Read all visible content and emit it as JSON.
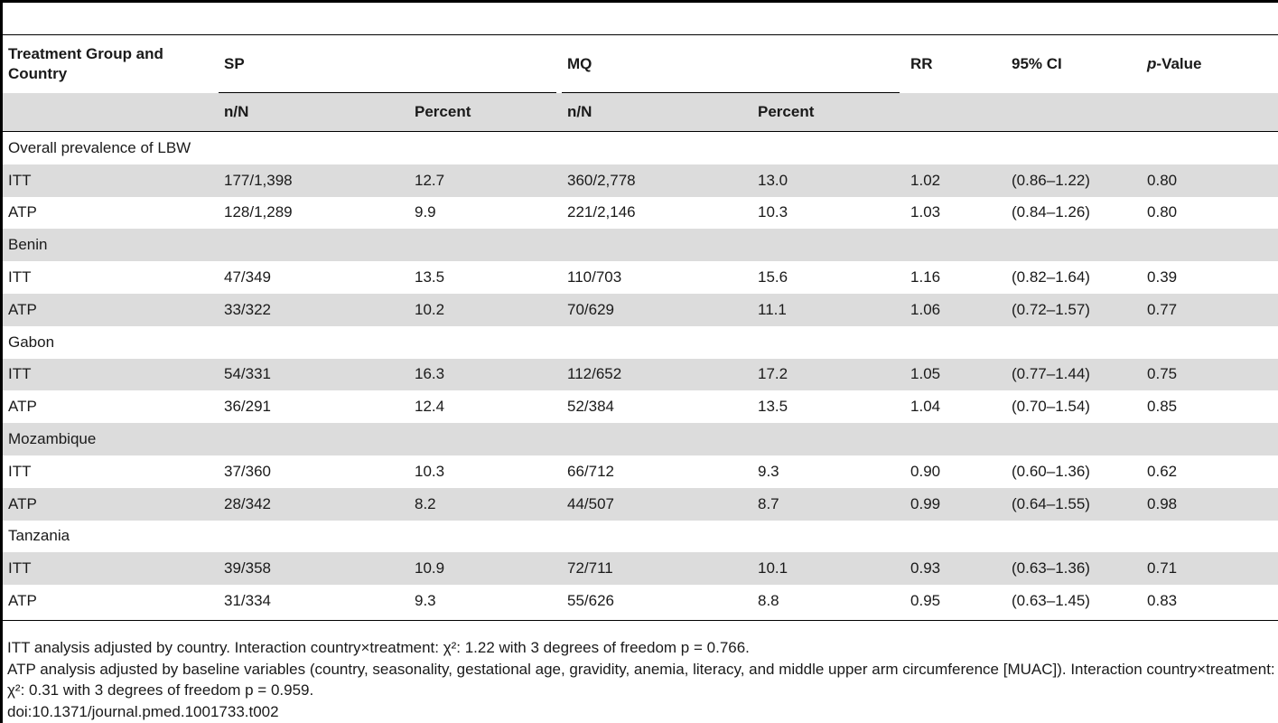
{
  "table": {
    "headers": {
      "group": "Treatment Group and Country",
      "sp": "SP",
      "mq": "MQ",
      "rr": "RR",
      "ci": "95% CI",
      "p_italic": "p",
      "p_rest": "-Value",
      "sp_nN": "n/N",
      "sp_pct": "Percent",
      "mq_nN": "n/N",
      "mq_pct": "Percent"
    },
    "sections": [
      {
        "label": "Overall prevalence of LBW",
        "rows": [
          {
            "label": "ITT",
            "sp_nN": "177/1,398",
            "sp_pct": "12.7",
            "mq_nN": "360/2,778",
            "mq_pct": "13.0",
            "rr": "1.02",
            "ci": "(0.86–1.22)",
            "p": "0.80"
          },
          {
            "label": "ATP",
            "sp_nN": "128/1,289",
            "sp_pct": "9.9",
            "mq_nN": "221/2,146",
            "mq_pct": "10.3",
            "rr": "1.03",
            "ci": "(0.84–1.26)",
            "p": "0.80"
          }
        ]
      },
      {
        "label": "Benin",
        "rows": [
          {
            "label": "ITT",
            "sp_nN": "47/349",
            "sp_pct": "13.5",
            "mq_nN": "110/703",
            "mq_pct": "15.6",
            "rr": "1.16",
            "ci": "(0.82–1.64)",
            "p": "0.39"
          },
          {
            "label": "ATP",
            "sp_nN": "33/322",
            "sp_pct": "10.2",
            "mq_nN": "70/629",
            "mq_pct": "11.1",
            "rr": "1.06",
            "ci": "(0.72–1.57)",
            "p": "0.77"
          }
        ]
      },
      {
        "label": "Gabon",
        "rows": [
          {
            "label": "ITT",
            "sp_nN": "54/331",
            "sp_pct": "16.3",
            "mq_nN": "112/652",
            "mq_pct": "17.2",
            "rr": "1.05",
            "ci": "(0.77–1.44)",
            "p": "0.75"
          },
          {
            "label": "ATP",
            "sp_nN": "36/291",
            "sp_pct": "12.4",
            "mq_nN": "52/384",
            "mq_pct": "13.5",
            "rr": "1.04",
            "ci": "(0.70–1.54)",
            "p": "0.85"
          }
        ]
      },
      {
        "label": "Mozambique",
        "rows": [
          {
            "label": "ITT",
            "sp_nN": "37/360",
            "sp_pct": "10.3",
            "mq_nN": "66/712",
            "mq_pct": "9.3",
            "rr": "0.90",
            "ci": "(0.60–1.36)",
            "p": "0.62"
          },
          {
            "label": "ATP",
            "sp_nN": "28/342",
            "sp_pct": "8.2",
            "mq_nN": "44/507",
            "mq_pct": "8.7",
            "rr": "0.99",
            "ci": "(0.64–1.55)",
            "p": "0.98"
          }
        ]
      },
      {
        "label": "Tanzania",
        "rows": [
          {
            "label": "ITT",
            "sp_nN": "39/358",
            "sp_pct": "10.9",
            "mq_nN": "72/711",
            "mq_pct": "10.1",
            "rr": "0.93",
            "ci": "(0.63–1.36)",
            "p": "0.71"
          },
          {
            "label": "ATP",
            "sp_nN": "31/334",
            "sp_pct": "9.3",
            "mq_nN": "55/626",
            "mq_pct": "8.8",
            "rr": "0.95",
            "ci": "(0.63–1.45)",
            "p": "0.83"
          }
        ]
      }
    ]
  },
  "footnotes": {
    "itt": "ITT analysis adjusted by country. Interaction country×treatment: χ²: 1.22 with 3 degrees of freedom p = 0.766.",
    "atp": "ATP analysis adjusted by baseline variables (country, seasonality, gestational age, gravidity, anemia, literacy, and middle upper arm circumference [MUAC]). Interaction country×treatment: χ²: 0.31 with 3 degrees of freedom p = 0.959.",
    "doi": "doi:10.1371/journal.pmed.1001733.t002"
  }
}
